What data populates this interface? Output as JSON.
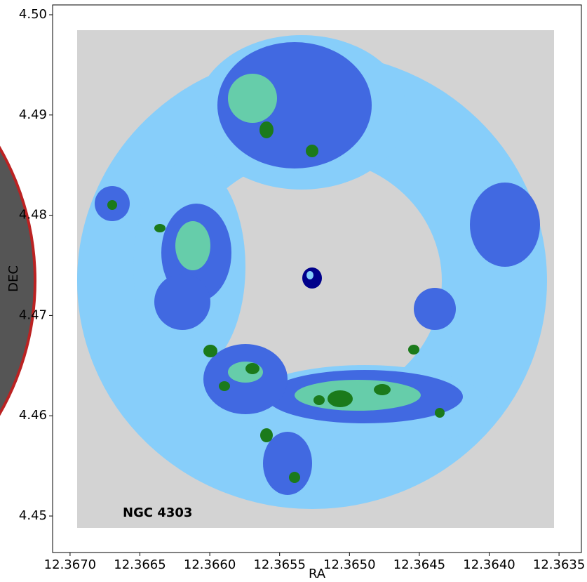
{
  "chart_data": {
    "type": "image",
    "annotation": "NGC 4303",
    "x_label": "RA",
    "y_label": "DEC",
    "xlim": [
      12.367125,
      12.36334
    ],
    "ylim": [
      4.44636,
      4.50098
    ],
    "xticks": [
      {
        "value": 12.367,
        "label": "12.3670"
      },
      12.3665,
      {
        "value": 12.366,
        "label": "12.3660"
      },
      12.3655,
      {
        "value": 12.365,
        "label": "12.3650"
      },
      12.3645,
      {
        "value": 12.364,
        "label": "12.3640"
      },
      12.3635
    ],
    "yticks": [
      {
        "value": 4.45,
        "label": "4.45"
      },
      4.46,
      4.47,
      4.48,
      4.49,
      {
        "value": 4.5,
        "label": "4.50"
      }
    ]
  }
}
